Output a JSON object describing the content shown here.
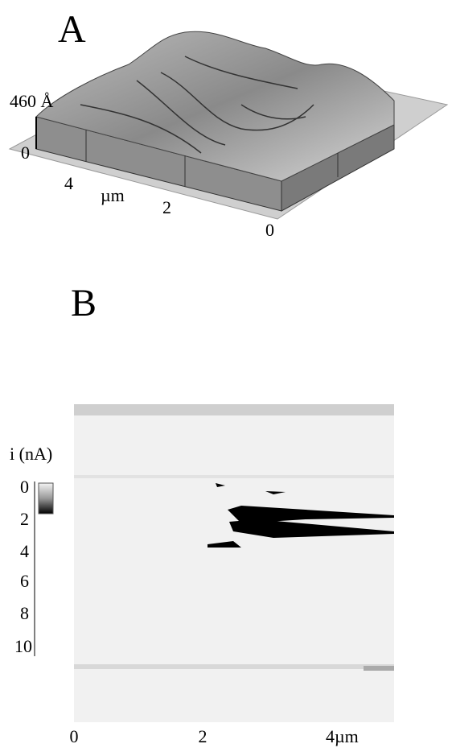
{
  "panel_a": {
    "label": "A",
    "z_label": "460 Å",
    "z_zero": "0",
    "axis_labels": [
      "4",
      "µm",
      "2",
      "0"
    ]
  },
  "panel_b": {
    "label": "B",
    "scale_title": "i (nA)",
    "scale_ticks": [
      "0",
      "2",
      "4",
      "6",
      "8",
      "10"
    ],
    "x_ticks": [
      "0",
      "2",
      "4µm"
    ]
  }
}
